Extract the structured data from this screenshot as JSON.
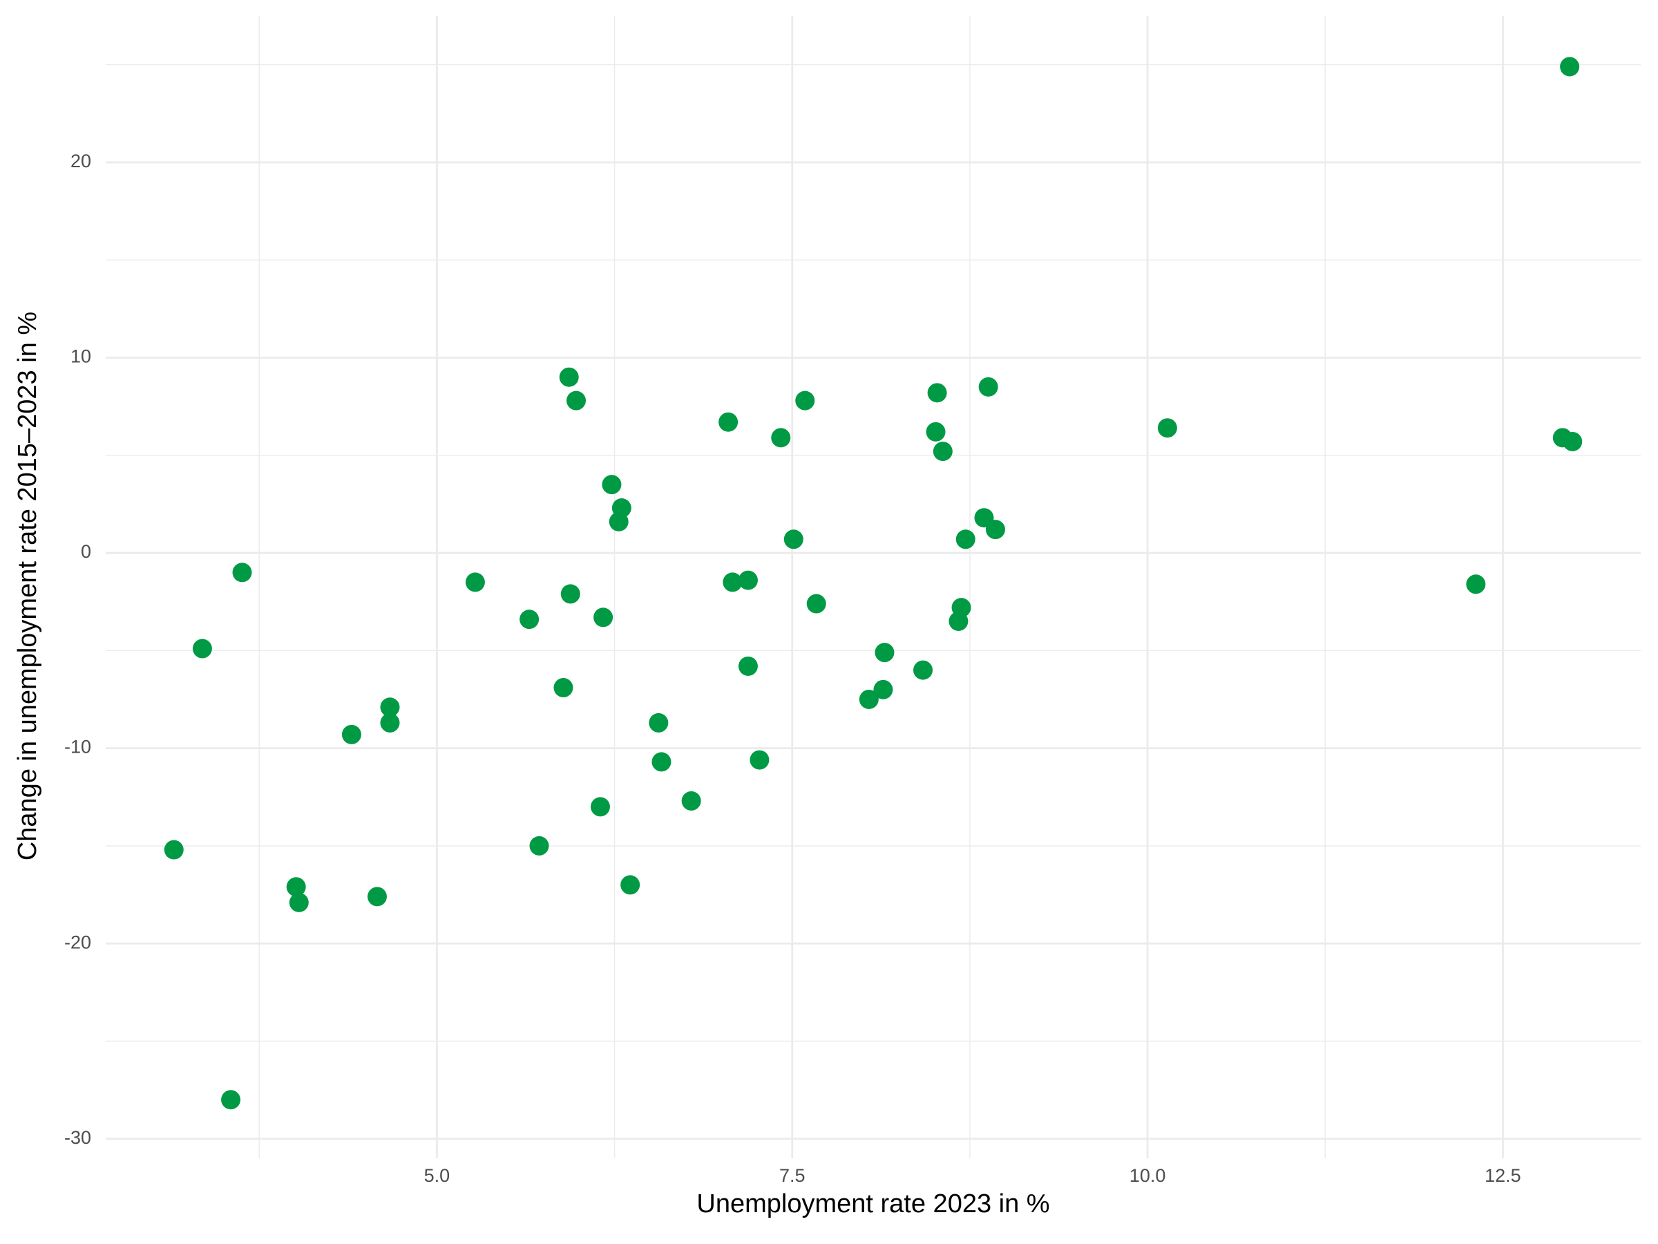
{
  "chart_data": {
    "type": "scatter",
    "x_label": "Unemployment rate 2023 in %",
    "y_label": "Change in unemployment rate 2015–2023 in %",
    "color": "#009a44",
    "grid": true,
    "xlim": [
      2.67,
      13.47
    ],
    "ylim": [
      -31,
      27.5
    ],
    "xticks": [
      {
        "value": 5,
        "label": "5.0"
      },
      7.5,
      {
        "value": 10,
        "label": "10.0"
      },
      12.5
    ],
    "yticks": [
      -30,
      -20,
      -10,
      0,
      10,
      20
    ],
    "x_minor_ticks": [
      3.75,
      6.25,
      8.75,
      11.25
    ],
    "y_minor_ticks": [
      -25,
      -15,
      -5,
      5,
      15,
      25
    ],
    "x": [
      12.97,
      12.92,
      12.99,
      12.31,
      10.14,
      8.88,
      8.52,
      8.51,
      8.56,
      8.85,
      8.93,
      8.72,
      8.69,
      8.67,
      8.42,
      8.15,
      8.14,
      8.04,
      7.59,
      7.42,
      7.51,
      7.67,
      7.05,
      7.08,
      7.19,
      7.19,
      7.27,
      6.79,
      6.58,
      6.56,
      6.36,
      6.15,
      6.17,
      6.23,
      6.3,
      6.28,
      5.93,
      5.98,
      5.94,
      5.89,
      5.72,
      5.65,
      5.27,
      4.67,
      4.67,
      4.4,
      4.58,
      4.01,
      4.03,
      3.63,
      3.35,
      3.15,
      3.55
    ],
    "values": [
      24.9,
      5.9,
      5.7,
      -1.6,
      6.4,
      8.5,
      8.2,
      6.2,
      5.2,
      1.8,
      1.2,
      0.7,
      -2.8,
      -3.5,
      -6.0,
      -5.1,
      -7.0,
      -7.5,
      7.8,
      5.9,
      0.7,
      -2.6,
      6.7,
      -1.5,
      -1.4,
      -5.8,
      -10.6,
      -12.7,
      -10.7,
      -8.7,
      -17.0,
      -13.0,
      -3.3,
      3.5,
      2.3,
      1.6,
      9.0,
      7.8,
      -2.1,
      -6.9,
      -15.0,
      -3.4,
      -1.5,
      -7.9,
      -8.7,
      -9.3,
      -17.6,
      -17.1,
      -17.9,
      -1.0,
      -4.9,
      -15.2,
      -28.0
    ]
  }
}
